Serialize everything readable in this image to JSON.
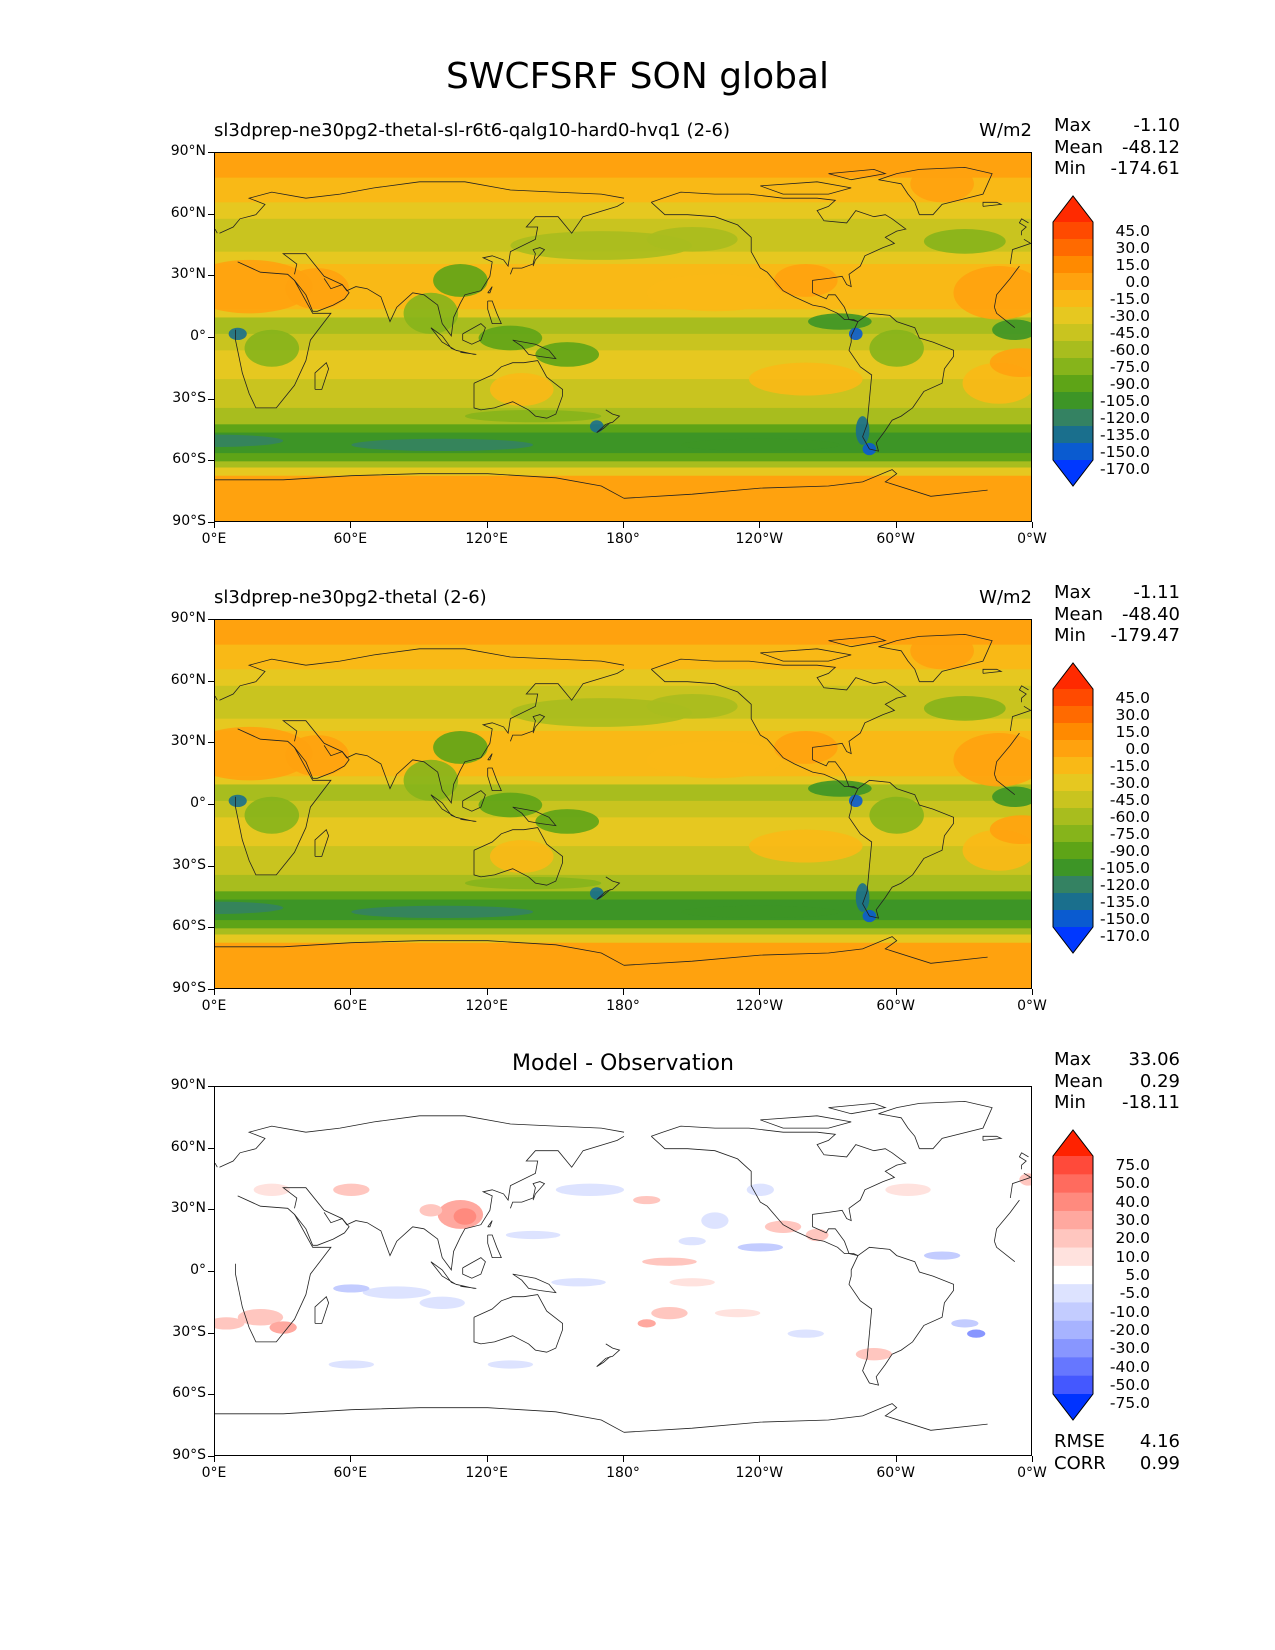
{
  "figure": {
    "title": "SWCFSRF SON global"
  },
  "axes": {
    "lat_ticks": [
      "90°N",
      "60°N",
      "30°N",
      "0°",
      "30°S",
      "60°S",
      "90°S"
    ],
    "lon_ticks": [
      "0°E",
      "60°E",
      "120°E",
      "180°",
      "120°W",
      "60°W",
      "0°W"
    ]
  },
  "panels": [
    {
      "title_left": "sl3dprep-ne30pg2-thetal-sl-r6t6-qalg10-hard0-hvq1 (2-6)",
      "title_right": "W/m2",
      "stats": {
        "max_label": "Max",
        "max": "-1.10",
        "mean_label": "Mean",
        "mean": "-48.12",
        "min_label": "Min",
        "min": "-174.61"
      }
    },
    {
      "title_left": "sl3dprep-ne30pg2-thetal (2-6)",
      "title_right": "W/m2",
      "stats": {
        "max_label": "Max",
        "max": "-1.11",
        "mean_label": "Mean",
        "mean": "-48.40",
        "min_label": "Min",
        "min": "-179.47"
      }
    },
    {
      "title_center": "Model - Observation",
      "stats": {
        "max_label": "Max",
        "max": "33.06",
        "mean_label": "Mean",
        "mean": "0.29",
        "min_label": "Min",
        "min": "-18.11"
      },
      "footer": {
        "rmse_label": "RMSE",
        "rmse": "4.16",
        "corr_label": "CORR",
        "corr": "0.99"
      }
    }
  ],
  "colorbars": {
    "model": {
      "labels": [
        "45.0",
        "30.0",
        "15.0",
        "0.0",
        "-15.0",
        "-30.0",
        "-45.0",
        "-60.0",
        "-75.0",
        "-90.0",
        "-105.0",
        "-120.0",
        "-135.0",
        "-150.0",
        "-170.0"
      ],
      "colors": [
        "#ff2a00",
        "#ff4a00",
        "#ff6a00",
        "#ff8a00",
        "#ffa20e",
        "#f9b916",
        "#e6c820",
        "#c9c41f",
        "#a8bd1e",
        "#86b41b",
        "#5ea417",
        "#3d9526",
        "#348262",
        "#1a6f8d",
        "#0a5bd0",
        "#0038ff"
      ]
    },
    "diff": {
      "labels": [
        "75.0",
        "50.0",
        "40.0",
        "30.0",
        "20.0",
        "10.0",
        "5.0",
        "-5.0",
        "-10.0",
        "-20.0",
        "-30.0",
        "-40.0",
        "-50.0",
        "-75.0"
      ],
      "colors": [
        "#ff2200",
        "#ff4a3a",
        "#ff6b5e",
        "#ff8a7e",
        "#ffa89f",
        "#ffc6bf",
        "#ffe2de",
        "#ffffff",
        "#dde3ff",
        "#c3ccff",
        "#a7b3ff",
        "#8896ff",
        "#6677ff",
        "#4458ff",
        "#0033ff"
      ]
    }
  },
  "chart_data": [
    {
      "type": "heatmap",
      "title": "sl3dprep-ne30pg2-thetal-sl-r6t6-qalg10-hard0-hvq1 (2-6)",
      "units": "W/m2",
      "x_ticks": [
        "0°E",
        "60°E",
        "120°E",
        "180°",
        "120°W",
        "60°W",
        "0°W"
      ],
      "y_ticks": [
        "90°N",
        "60°N",
        "30°N",
        "0°",
        "30°S",
        "60°S",
        "90°S"
      ],
      "xlim": [
        0,
        360
      ],
      "ylim": [
        -90,
        90
      ],
      "color_levels": [
        -170,
        -150,
        -135,
        -120,
        -105,
        -90,
        -75,
        -60,
        -45,
        -30,
        -15,
        0,
        15,
        30,
        45
      ],
      "approx_zonal_mean": {
        "lat": [
          80,
          60,
          45,
          30,
          15,
          5,
          -10,
          -30,
          -50,
          -60,
          -75
        ],
        "value": [
          -20,
          -45,
          -60,
          -40,
          -30,
          -60,
          -50,
          -70,
          -115,
          -95,
          -25
        ]
      },
      "stats": {
        "max": -1.1,
        "mean": -48.12,
        "min": -174.61
      }
    },
    {
      "type": "heatmap",
      "title": "sl3dprep-ne30pg2-thetal (2-6)",
      "units": "W/m2",
      "x_ticks": [
        "0°E",
        "60°E",
        "120°E",
        "180°",
        "120°W",
        "60°W",
        "0°W"
      ],
      "y_ticks": [
        "90°N",
        "60°N",
        "30°N",
        "0°",
        "30°S",
        "60°S",
        "90°S"
      ],
      "xlim": [
        0,
        360
      ],
      "ylim": [
        -90,
        90
      ],
      "color_levels": [
        -170,
        -150,
        -135,
        -120,
        -105,
        -90,
        -75,
        -60,
        -45,
        -30,
        -15,
        0,
        15,
        30,
        45
      ],
      "approx_zonal_mean": {
        "lat": [
          80,
          60,
          45,
          30,
          15,
          5,
          -10,
          -30,
          -50,
          -60,
          -75
        ],
        "value": [
          -20,
          -45,
          -60,
          -40,
          -30,
          -60,
          -50,
          -70,
          -118,
          -95,
          -25
        ]
      },
      "stats": {
        "max": -1.11,
        "mean": -48.4,
        "min": -179.47
      }
    },
    {
      "type": "heatmap",
      "title": "Model - Observation",
      "x_ticks": [
        "0°E",
        "60°E",
        "120°E",
        "180°",
        "120°W",
        "60°W",
        "0°W"
      ],
      "y_ticks": [
        "90°N",
        "60°N",
        "30°N",
        "0°",
        "30°S",
        "60°S",
        "90°S"
      ],
      "xlim": [
        0,
        360
      ],
      "ylim": [
        -90,
        90
      ],
      "color_levels": [
        -75,
        -50,
        -40,
        -30,
        -20,
        -10,
        -5,
        5,
        10,
        20,
        30,
        40,
        50,
        75
      ],
      "stats": {
        "max": 33.06,
        "mean": 0.29,
        "min": -18.11,
        "rmse": 4.16,
        "corr": 0.99
      }
    }
  ]
}
